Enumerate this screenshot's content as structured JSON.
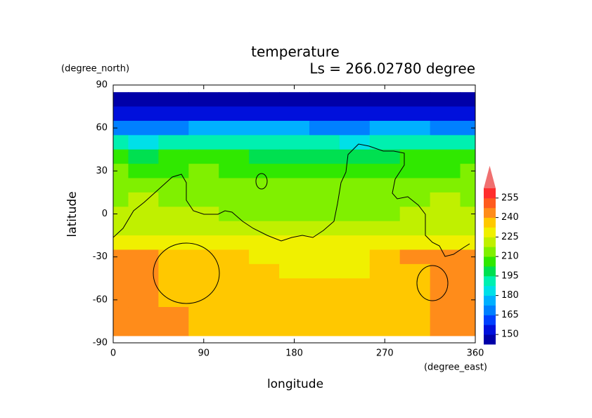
{
  "chart_data": {
    "type": "contour",
    "title": "temperature",
    "subtitle": "Ls = 266.02780 degree",
    "x_label": "longitude",
    "y_label": "latitude",
    "x_units": "(degree_east)",
    "y_units": "(degree_north)",
    "x": [
      0,
      30,
      60,
      90,
      120,
      150,
      180,
      210,
      240,
      270,
      300,
      330,
      360
    ],
    "y": [
      80,
      70,
      60,
      50,
      40,
      30,
      20,
      10,
      0,
      -10,
      -20,
      -30,
      -40,
      -50,
      -60,
      -70,
      -80
    ],
    "z": [
      [
        145,
        145,
        145,
        145,
        145,
        145,
        145,
        145,
        145,
        145,
        145,
        145,
        145
      ],
      [
        152,
        150,
        150,
        152,
        150,
        150,
        151,
        150,
        150,
        152,
        150,
        150,
        152
      ],
      [
        170,
        168,
        172,
        175,
        178,
        176,
        174,
        172,
        170,
        173,
        175,
        172,
        170
      ],
      [
        188,
        186,
        189,
        190,
        192,
        192,
        190,
        188,
        186,
        188,
        190,
        189,
        188
      ],
      [
        203,
        202,
        204,
        205,
        204,
        200,
        198,
        200,
        202,
        200,
        203,
        204,
        203
      ],
      [
        210,
        209,
        208,
        212,
        209,
        206,
        207,
        208,
        206,
        205,
        207,
        209,
        210
      ],
      [
        215,
        214,
        213,
        214,
        212,
        211,
        210,
        212,
        211,
        210,
        213,
        215,
        215
      ],
      [
        217,
        218,
        216,
        215,
        213,
        213,
        214,
        214,
        213,
        213,
        216,
        218,
        217
      ],
      [
        220,
        220,
        219,
        218,
        216,
        215,
        215,
        216,
        215,
        214,
        219,
        220,
        220
      ],
      [
        224,
        224,
        224,
        222,
        221,
        220,
        220,
        219,
        218,
        220,
        223,
        224,
        224
      ],
      [
        228,
        229,
        230,
        229,
        228,
        227,
        227,
        226,
        226,
        227,
        228,
        229,
        228
      ],
      [
        242,
        242,
        236,
        234,
        233,
        232,
        231,
        230,
        230,
        233,
        242,
        242,
        242
      ],
      [
        243,
        242,
        236,
        236,
        234,
        233,
        232,
        231,
        232,
        234,
        236,
        242,
        243
      ],
      [
        243,
        242,
        237,
        237,
        236,
        235,
        234,
        233,
        234,
        236,
        237,
        243,
        243
      ],
      [
        242,
        241,
        236,
        236,
        236,
        236,
        235,
        235,
        236,
        236,
        236,
        242,
        242
      ],
      [
        241,
        242,
        242,
        236,
        236,
        236,
        236,
        236,
        236,
        236,
        236,
        241,
        241
      ],
      [
        241,
        243,
        242,
        236,
        236,
        236,
        236,
        236,
        236,
        236,
        236,
        241,
        242
      ]
    ],
    "xlim": [
      0,
      360
    ],
    "ylim": [
      -90,
      90
    ],
    "xticks": [
      0,
      90,
      180,
      270,
      360
    ],
    "yticks": [
      -90,
      -60,
      -30,
      0,
      30,
      60,
      90
    ],
    "colorbar": {
      "levels": [
        142.5,
        150,
        157.5,
        165,
        172.5,
        180,
        187.5,
        195,
        202.5,
        210,
        217.5,
        225,
        232.5,
        240,
        247.5,
        255,
        262.5
      ],
      "colors": [
        "#0000a8",
        "#0010dc",
        "#0040ff",
        "#0080ff",
        "#00b0ff",
        "#00e0e8",
        "#00f0b0",
        "#00e050",
        "#30e800",
        "#80f000",
        "#c0f000",
        "#f0f000",
        "#ffc800",
        "#ff8c1a",
        "#ff5a1e",
        "#ff2d2d"
      ],
      "over_color": "#f07070",
      "ticks": [
        150,
        165,
        180,
        195,
        210,
        225,
        240,
        255
      ]
    }
  }
}
